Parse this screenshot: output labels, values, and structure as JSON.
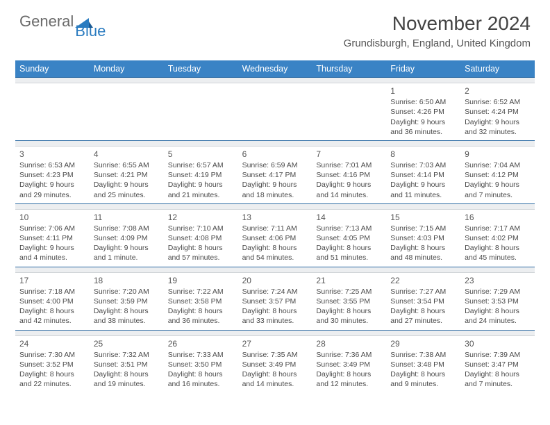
{
  "brand": {
    "general": "General",
    "blue": "Blue"
  },
  "title": "November 2024",
  "location": "Grundisburgh, England, United Kingdom",
  "day_names": [
    "Sunday",
    "Monday",
    "Tuesday",
    "Wednesday",
    "Thursday",
    "Friday",
    "Saturday"
  ],
  "colors": {
    "header_bg": "#3a83c5",
    "sep_bg": "#eceef0",
    "sep_border_top": "#2b6aa3"
  },
  "weeks": [
    [
      null,
      null,
      null,
      null,
      null,
      {
        "n": "1",
        "sr": "Sunrise: 6:50 AM",
        "ss": "Sunset: 4:26 PM",
        "d1": "Daylight: 9 hours",
        "d2": "and 36 minutes."
      },
      {
        "n": "2",
        "sr": "Sunrise: 6:52 AM",
        "ss": "Sunset: 4:24 PM",
        "d1": "Daylight: 9 hours",
        "d2": "and 32 minutes."
      }
    ],
    [
      {
        "n": "3",
        "sr": "Sunrise: 6:53 AM",
        "ss": "Sunset: 4:23 PM",
        "d1": "Daylight: 9 hours",
        "d2": "and 29 minutes."
      },
      {
        "n": "4",
        "sr": "Sunrise: 6:55 AM",
        "ss": "Sunset: 4:21 PM",
        "d1": "Daylight: 9 hours",
        "d2": "and 25 minutes."
      },
      {
        "n": "5",
        "sr": "Sunrise: 6:57 AM",
        "ss": "Sunset: 4:19 PM",
        "d1": "Daylight: 9 hours",
        "d2": "and 21 minutes."
      },
      {
        "n": "6",
        "sr": "Sunrise: 6:59 AM",
        "ss": "Sunset: 4:17 PM",
        "d1": "Daylight: 9 hours",
        "d2": "and 18 minutes."
      },
      {
        "n": "7",
        "sr": "Sunrise: 7:01 AM",
        "ss": "Sunset: 4:16 PM",
        "d1": "Daylight: 9 hours",
        "d2": "and 14 minutes."
      },
      {
        "n": "8",
        "sr": "Sunrise: 7:03 AM",
        "ss": "Sunset: 4:14 PM",
        "d1": "Daylight: 9 hours",
        "d2": "and 11 minutes."
      },
      {
        "n": "9",
        "sr": "Sunrise: 7:04 AM",
        "ss": "Sunset: 4:12 PM",
        "d1": "Daylight: 9 hours",
        "d2": "and 7 minutes."
      }
    ],
    [
      {
        "n": "10",
        "sr": "Sunrise: 7:06 AM",
        "ss": "Sunset: 4:11 PM",
        "d1": "Daylight: 9 hours",
        "d2": "and 4 minutes."
      },
      {
        "n": "11",
        "sr": "Sunrise: 7:08 AM",
        "ss": "Sunset: 4:09 PM",
        "d1": "Daylight: 9 hours",
        "d2": "and 1 minute."
      },
      {
        "n": "12",
        "sr": "Sunrise: 7:10 AM",
        "ss": "Sunset: 4:08 PM",
        "d1": "Daylight: 8 hours",
        "d2": "and 57 minutes."
      },
      {
        "n": "13",
        "sr": "Sunrise: 7:11 AM",
        "ss": "Sunset: 4:06 PM",
        "d1": "Daylight: 8 hours",
        "d2": "and 54 minutes."
      },
      {
        "n": "14",
        "sr": "Sunrise: 7:13 AM",
        "ss": "Sunset: 4:05 PM",
        "d1": "Daylight: 8 hours",
        "d2": "and 51 minutes."
      },
      {
        "n": "15",
        "sr": "Sunrise: 7:15 AM",
        "ss": "Sunset: 4:03 PM",
        "d1": "Daylight: 8 hours",
        "d2": "and 48 minutes."
      },
      {
        "n": "16",
        "sr": "Sunrise: 7:17 AM",
        "ss": "Sunset: 4:02 PM",
        "d1": "Daylight: 8 hours",
        "d2": "and 45 minutes."
      }
    ],
    [
      {
        "n": "17",
        "sr": "Sunrise: 7:18 AM",
        "ss": "Sunset: 4:00 PM",
        "d1": "Daylight: 8 hours",
        "d2": "and 42 minutes."
      },
      {
        "n": "18",
        "sr": "Sunrise: 7:20 AM",
        "ss": "Sunset: 3:59 PM",
        "d1": "Daylight: 8 hours",
        "d2": "and 38 minutes."
      },
      {
        "n": "19",
        "sr": "Sunrise: 7:22 AM",
        "ss": "Sunset: 3:58 PM",
        "d1": "Daylight: 8 hours",
        "d2": "and 36 minutes."
      },
      {
        "n": "20",
        "sr": "Sunrise: 7:24 AM",
        "ss": "Sunset: 3:57 PM",
        "d1": "Daylight: 8 hours",
        "d2": "and 33 minutes."
      },
      {
        "n": "21",
        "sr": "Sunrise: 7:25 AM",
        "ss": "Sunset: 3:55 PM",
        "d1": "Daylight: 8 hours",
        "d2": "and 30 minutes."
      },
      {
        "n": "22",
        "sr": "Sunrise: 7:27 AM",
        "ss": "Sunset: 3:54 PM",
        "d1": "Daylight: 8 hours",
        "d2": "and 27 minutes."
      },
      {
        "n": "23",
        "sr": "Sunrise: 7:29 AM",
        "ss": "Sunset: 3:53 PM",
        "d1": "Daylight: 8 hours",
        "d2": "and 24 minutes."
      }
    ],
    [
      {
        "n": "24",
        "sr": "Sunrise: 7:30 AM",
        "ss": "Sunset: 3:52 PM",
        "d1": "Daylight: 8 hours",
        "d2": "and 22 minutes."
      },
      {
        "n": "25",
        "sr": "Sunrise: 7:32 AM",
        "ss": "Sunset: 3:51 PM",
        "d1": "Daylight: 8 hours",
        "d2": "and 19 minutes."
      },
      {
        "n": "26",
        "sr": "Sunrise: 7:33 AM",
        "ss": "Sunset: 3:50 PM",
        "d1": "Daylight: 8 hours",
        "d2": "and 16 minutes."
      },
      {
        "n": "27",
        "sr": "Sunrise: 7:35 AM",
        "ss": "Sunset: 3:49 PM",
        "d1": "Daylight: 8 hours",
        "d2": "and 14 minutes."
      },
      {
        "n": "28",
        "sr": "Sunrise: 7:36 AM",
        "ss": "Sunset: 3:49 PM",
        "d1": "Daylight: 8 hours",
        "d2": "and 12 minutes."
      },
      {
        "n": "29",
        "sr": "Sunrise: 7:38 AM",
        "ss": "Sunset: 3:48 PM",
        "d1": "Daylight: 8 hours",
        "d2": "and 9 minutes."
      },
      {
        "n": "30",
        "sr": "Sunrise: 7:39 AM",
        "ss": "Sunset: 3:47 PM",
        "d1": "Daylight: 8 hours",
        "d2": "and 7 minutes."
      }
    ]
  ]
}
